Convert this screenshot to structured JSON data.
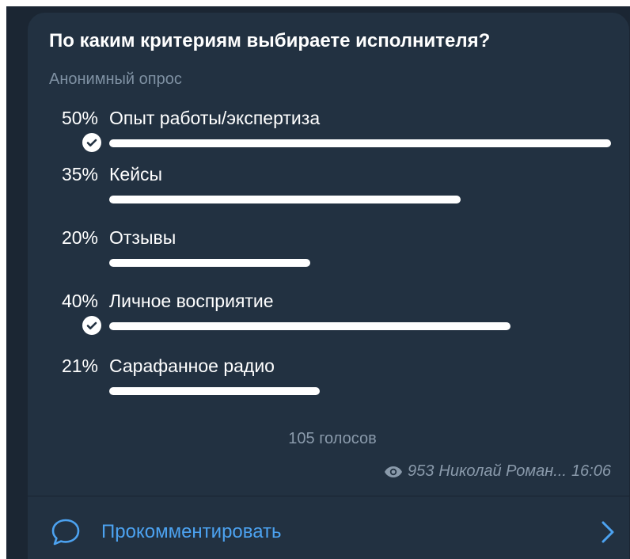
{
  "poll": {
    "question": "По каким критериям выбираете исполнителя?",
    "type_label": "Анонимный опрос",
    "options": [
      {
        "percent": "50%",
        "text": "Опыт работы/экспертиза",
        "fraction": 1.0,
        "chosen": true
      },
      {
        "percent": "35%",
        "text": "Кейсы",
        "fraction": 0.7,
        "chosen": false
      },
      {
        "percent": "20%",
        "text": "Отзывы",
        "fraction": 0.4,
        "chosen": false
      },
      {
        "percent": "40%",
        "text": "Личное восприятие",
        "fraction": 0.8,
        "chosen": true
      },
      {
        "percent": "21%",
        "text": "Сарафанное радио",
        "fraction": 0.42,
        "chosen": false
      }
    ],
    "votes": "105 голосов",
    "views": "953",
    "author": "Николай Роман...",
    "time": "16:06"
  },
  "footer": {
    "comment_label": "Прокомментировать",
    "comment_icon": "speech-bubble-icon",
    "chevron_icon": "chevron-right-icon"
  },
  "colors": {
    "background": "#223141",
    "text": "#ffffff",
    "muted": "#8a9aab",
    "accent": "#4ca2f0",
    "bar": "#ffffff"
  }
}
